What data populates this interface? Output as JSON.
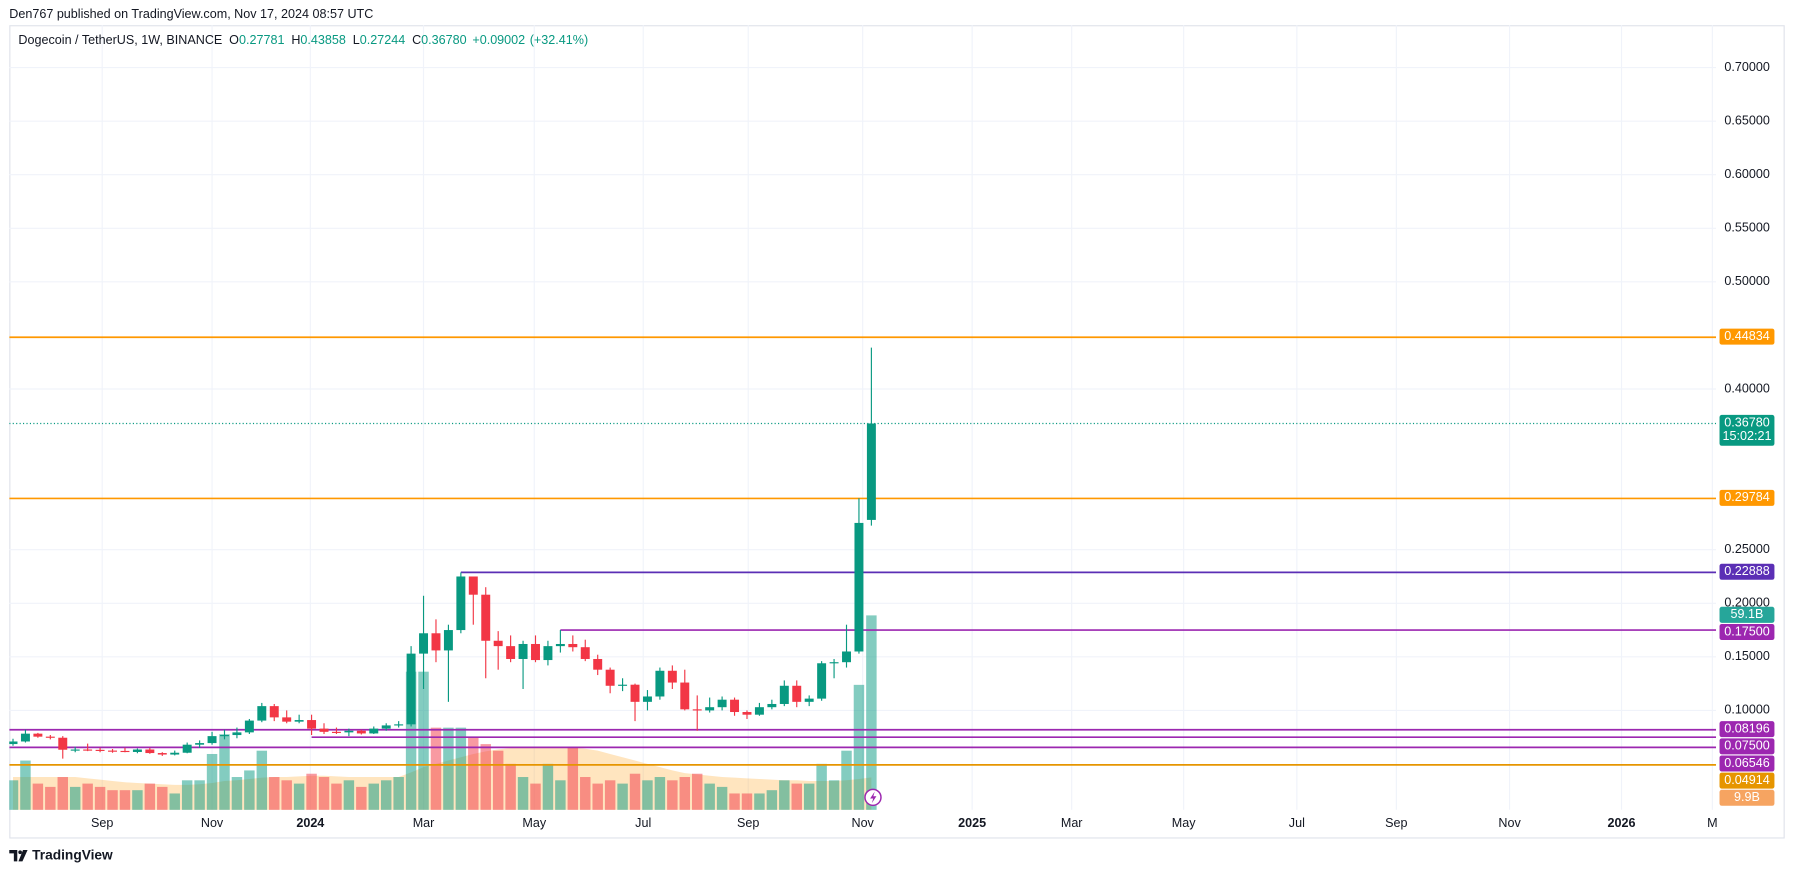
{
  "header": {
    "publisher": "Den767 published on TradingView.com, Nov 17, 2024 08:57 UTC"
  },
  "footer": {
    "brand": "TradingView"
  },
  "chart_data": {
    "type": "candlestick",
    "title": "Dogecoin / TetherUS, 1W, BINANCE",
    "legend": {
      "ohlc": [
        {
          "key": "O",
          "value": "0.27781"
        },
        {
          "key": "H",
          "value": "0.43858"
        },
        {
          "key": "L",
          "value": "0.27244"
        },
        {
          "key": "C",
          "value": "0.36780"
        }
      ],
      "change": "+0.09002",
      "change_pct": "(+32.41%)"
    },
    "up_color": "#089981",
    "down_color": "#f23645",
    "grid": true,
    "open": [
      0.0686,
      0.071,
      0.0783,
      0.0755,
      0.0745,
      0.0633,
      0.0635,
      0.0632,
      0.0625,
      0.0622,
      0.0612,
      0.0635,
      0.0602,
      0.0588,
      0.0605,
      0.068,
      0.0695,
      0.076,
      0.077,
      0.0795,
      0.0905,
      0.104,
      0.0935,
      0.0895,
      0.091,
      0.083,
      0.08,
      0.0795,
      0.081,
      0.0785,
      0.083,
      0.086,
      0.087,
      0.153,
      0.172,
      0.156,
      0.175,
      0.225,
      0.208,
      0.165,
      0.16,
      0.148,
      0.162,
      0.147,
      0.16,
      0.162,
      0.159,
      0.148,
      0.138,
      0.123,
      0.124,
      0.108,
      0.113,
      0.137,
      0.126,
      0.101,
      0.1,
      0.103,
      0.11,
      0.0985,
      0.096,
      0.103,
      0.106,
      0.123,
      0.108,
      0.111,
      0.144,
      0.145,
      0.155,
      0.27781
    ],
    "high": [
      0.0735,
      0.0821,
      0.079,
      0.077,
      0.076,
      0.066,
      0.069,
      0.065,
      0.064,
      0.065,
      0.0645,
      0.065,
      0.061,
      0.0625,
      0.07,
      0.072,
      0.08,
      0.082,
      0.084,
      0.092,
      0.107,
      0.106,
      0.1,
      0.096,
      0.096,
      0.088,
      0.084,
      0.083,
      0.082,
      0.085,
      0.088,
      0.09,
      0.16,
      0.207,
      0.185,
      0.18,
      0.2288,
      0.225,
      0.215,
      0.174,
      0.17,
      0.165,
      0.17,
      0.165,
      0.175,
      0.17,
      0.166,
      0.152,
      0.14,
      0.13,
      0.125,
      0.119,
      0.14,
      0.142,
      0.138,
      0.114,
      0.112,
      0.113,
      0.112,
      0.1,
      0.107,
      0.11,
      0.128,
      0.128,
      0.114,
      0.146,
      0.148,
      0.18,
      0.298,
      0.43858
    ],
    "low": [
      0.067,
      0.07,
      0.0745,
      0.073,
      0.055,
      0.061,
      0.062,
      0.061,
      0.0605,
      0.061,
      0.06,
      0.0595,
      0.0575,
      0.058,
      0.06,
      0.065,
      0.068,
      0.073,
      0.074,
      0.078,
      0.089,
      0.09,
      0.088,
      0.088,
      0.077,
      0.078,
      0.078,
      0.076,
      0.0775,
      0.078,
      0.081,
      0.084,
      0.085,
      0.12,
      0.145,
      0.108,
      0.172,
      0.18,
      0.13,
      0.138,
      0.145,
      0.12,
      0.145,
      0.142,
      0.154,
      0.155,
      0.146,
      0.133,
      0.116,
      0.118,
      0.09,
      0.1,
      0.11,
      0.12,
      0.1,
      0.081,
      0.098,
      0.1,
      0.095,
      0.092,
      0.095,
      0.101,
      0.104,
      0.103,
      0.104,
      0.109,
      0.13,
      0.14,
      0.153,
      0.27244
    ],
    "close": [
      0.071,
      0.0783,
      0.0755,
      0.0745,
      0.0633,
      0.0635,
      0.0632,
      0.0625,
      0.0622,
      0.0612,
      0.0635,
      0.0602,
      0.0588,
      0.0605,
      0.068,
      0.0695,
      0.076,
      0.077,
      0.0795,
      0.0905,
      0.104,
      0.0935,
      0.0895,
      0.091,
      0.083,
      0.08,
      0.0795,
      0.081,
      0.0785,
      0.083,
      0.086,
      0.087,
      0.153,
      0.172,
      0.156,
      0.175,
      0.225,
      0.208,
      0.165,
      0.16,
      0.148,
      0.162,
      0.147,
      0.16,
      0.162,
      0.159,
      0.148,
      0.138,
      0.123,
      0.124,
      0.108,
      0.113,
      0.137,
      0.126,
      0.101,
      0.1,
      0.103,
      0.11,
      0.0985,
      0.096,
      0.103,
      0.106,
      0.123,
      0.108,
      0.111,
      0.144,
      0.145,
      0.155,
      0.275,
      0.3678
    ],
    "ylim": [
      0.0071,
      0.7396
    ],
    "yticks": [
      {
        "value": 0.1,
        "label": "0.10000"
      },
      {
        "value": 0.15,
        "label": "0.15000"
      },
      {
        "value": 0.2,
        "label": "0.20000"
      },
      {
        "value": 0.25,
        "label": "0.25000"
      },
      {
        "value": 0.4,
        "label": "0.40000"
      },
      {
        "value": 0.5,
        "label": "0.50000"
      },
      {
        "value": 0.55,
        "label": "0.55000"
      },
      {
        "value": 0.6,
        "label": "0.60000"
      },
      {
        "value": 0.65,
        "label": "0.65000"
      },
      {
        "value": 0.7,
        "label": "0.70000"
      }
    ],
    "xlim": [
      -0.3,
      136.9
    ],
    "xticks": [
      {
        "value": 7.17,
        "label": "Sep"
      },
      {
        "value": 16.0,
        "label": "Nov"
      },
      {
        "value": 23.9,
        "label": "2024"
      },
      {
        "value": 33.0,
        "label": "Mar"
      },
      {
        "value": 41.9,
        "label": "May"
      },
      {
        "value": 50.66,
        "label": "Jul"
      },
      {
        "value": 59.1,
        "label": "Sep"
      },
      {
        "value": 68.3,
        "label": "Nov"
      },
      {
        "value": 77.1,
        "label": "2025"
      },
      {
        "value": 85.1,
        "label": "Mar"
      },
      {
        "value": 94.1,
        "label": "May"
      },
      {
        "value": 103.2,
        "label": "Jul"
      },
      {
        "value": 111.2,
        "label": "Sep"
      },
      {
        "value": 120.3,
        "label": "Nov"
      },
      {
        "value": 129.3,
        "label": "2026"
      },
      {
        "value": 136.6,
        "label": "M"
      }
    ],
    "last_price": {
      "value": 0.3678,
      "label": "0.36780",
      "countdown": "15:02:21",
      "color": "#089981"
    },
    "levels": [
      {
        "value": 0.44834,
        "label": "0.44834",
        "color": "#ff9800"
      },
      {
        "value": 0.29784,
        "label": "0.29784",
        "color": "#ff9800"
      },
      {
        "value": 0.22888,
        "label": "0.22888",
        "color": "#5b2fb5",
        "from": 36
      },
      {
        "value": 0.175,
        "label": "0.17500",
        "color": "#9c27b0",
        "from": 44
      },
      {
        "value": 0.08196,
        "label": "0.08196",
        "color": "#9c27b0"
      },
      {
        "value": 0.075,
        "label": "0.07500",
        "color": "#9c27b0",
        "from": 24
      },
      {
        "value": 0.06546,
        "label": "0.06546",
        "color": "#9c27b0"
      },
      {
        "value": 0.04914,
        "label": "0.04914",
        "color": "#e69500"
      }
    ],
    "volume": {
      "ylim": [
        0,
        238.4
      ],
      "up_color": "rgba(8,153,129,0.5)",
      "down_color": "rgba(242,54,69,0.5)",
      "badge_color": "#26a69a",
      "values": [
        9,
        15,
        8,
        7,
        10,
        7,
        8,
        7,
        6,
        6,
        6,
        8,
        7,
        5,
        9,
        9,
        17,
        23,
        10,
        12,
        18,
        10,
        9,
        8,
        11,
        10,
        8,
        9,
        7,
        8,
        9,
        10,
        42,
        42,
        25,
        25,
        25,
        22,
        20,
        18,
        14,
        10,
        8,
        14,
        9,
        19,
        10,
        8,
        9,
        8,
        11,
        9,
        10,
        9,
        10,
        11,
        8,
        7,
        5,
        5,
        5,
        6,
        9,
        8,
        8,
        14,
        9,
        18,
        38,
        59.1
      ],
      "value_labels": [
        null,
        null,
        null,
        null,
        null,
        null,
        null,
        null,
        null,
        null,
        null,
        null,
        null,
        null,
        null,
        null,
        null,
        null,
        null,
        null,
        null,
        null,
        null,
        null,
        null,
        null,
        null,
        null,
        null,
        null,
        null,
        null,
        null,
        null,
        null,
        null,
        null,
        null,
        null,
        null,
        null,
        null,
        null,
        null,
        null,
        null,
        null,
        null,
        null,
        null,
        null,
        null,
        null,
        null,
        null,
        null,
        null,
        null,
        null,
        null,
        null,
        null,
        null,
        null,
        null,
        null,
        null,
        null,
        null,
        "59.1B"
      ],
      "ma": {
        "color": "rgba(255,152,0,0.25)",
        "badge_color": "#f6a461",
        "values": [
          10,
          10,
          10,
          10,
          10,
          10,
          9.6,
          9.2,
          8.8,
          8.4,
          8.2,
          8,
          7.8,
          7.6,
          7.6,
          7.8,
          8.2,
          8.8,
          9,
          9.4,
          9.8,
          10,
          10,
          10.2,
          10.4,
          10.4,
          10.2,
          10,
          10,
          10,
          10,
          10,
          11.4,
          13,
          14,
          15,
          16,
          17,
          17.8,
          18.4,
          18.8,
          19,
          19,
          19.2,
          19.2,
          19,
          18.6,
          18,
          17,
          16,
          15,
          14,
          13,
          12,
          11.2,
          10.8,
          10.4,
          10,
          9.8,
          9.6,
          9.4,
          9.2,
          9,
          9,
          8.8,
          8.8,
          8.8,
          9,
          9.4,
          9.9
        ],
        "value_labels": [
          null,
          null,
          null,
          null,
          null,
          null,
          null,
          null,
          null,
          null,
          null,
          null,
          null,
          null,
          null,
          null,
          null,
          null,
          null,
          null,
          null,
          null,
          null,
          null,
          null,
          null,
          null,
          null,
          null,
          null,
          null,
          null,
          null,
          null,
          null,
          null,
          null,
          null,
          null,
          null,
          null,
          null,
          null,
          null,
          null,
          null,
          null,
          null,
          null,
          null,
          null,
          null,
          null,
          null,
          null,
          null,
          null,
          null,
          null,
          null,
          null,
          null,
          null,
          null,
          null,
          null,
          null,
          null,
          null,
          "9.9B"
        ]
      }
    }
  }
}
